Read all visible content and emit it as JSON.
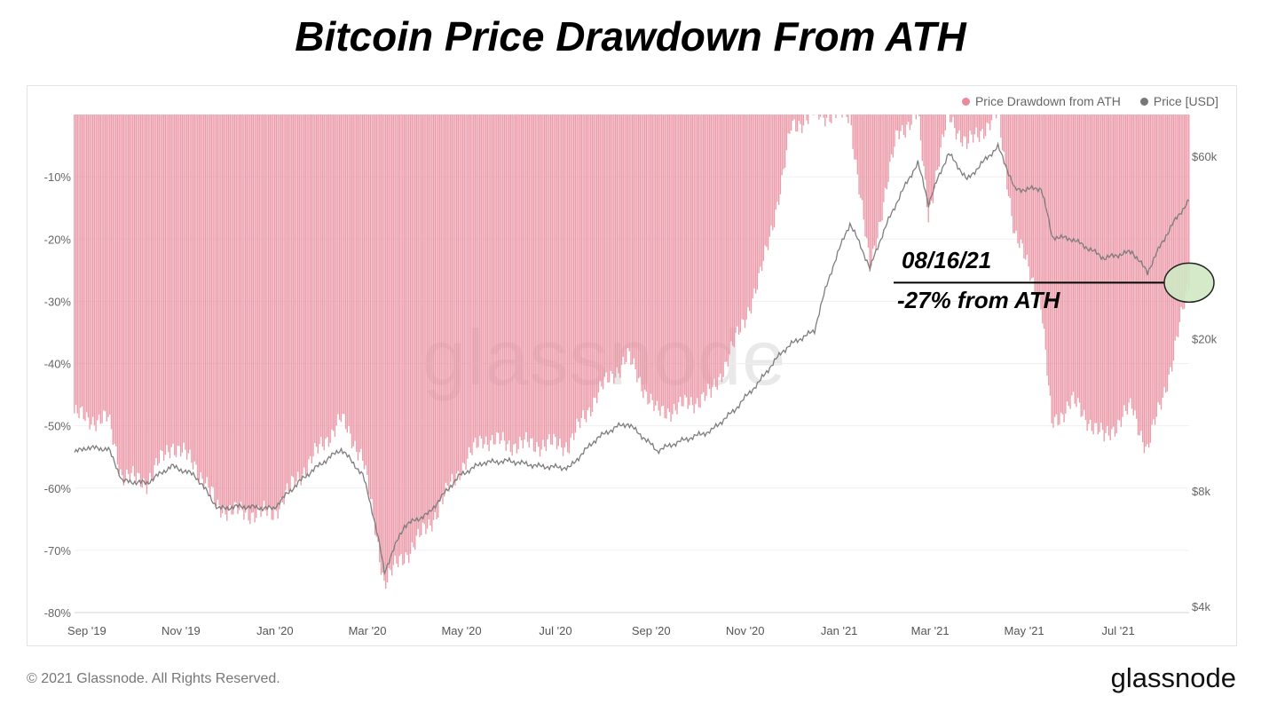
{
  "title": "Bitcoin Price Drawdown From ATH",
  "watermark": "glassnode",
  "legend": [
    {
      "label": "Price Drawdown from ATH",
      "color": "#e88a9a"
    },
    {
      "label": "Price [USD]",
      "color": "#777777"
    }
  ],
  "annotation": {
    "date": "08/16/21",
    "value": "-27% from ATH"
  },
  "footer": {
    "copyright": "© 2021 Glassnode. All Rights Reserved.",
    "logo": "glassnode"
  },
  "chart_data": {
    "type": "bar",
    "x_start": "2019-08-24",
    "x_end": "2021-08-16",
    "x_ticks": [
      "Sep '19",
      "Nov '19",
      "Jan '20",
      "Mar '20",
      "May '20",
      "Jul '20",
      "Sep '20",
      "Nov '20",
      "Jan '21",
      "Mar '21",
      "May '21",
      "Jul '21"
    ],
    "x_tick_dates": [
      "2019-09-01",
      "2019-11-01",
      "2020-01-01",
      "2020-03-01",
      "2020-05-01",
      "2020-07-01",
      "2020-09-01",
      "2020-11-01",
      "2021-01-01",
      "2021-03-01",
      "2021-05-01",
      "2021-07-01"
    ],
    "y_left": {
      "ticks": [
        "-10%",
        "-20%",
        "-30%",
        "-40%",
        "-50%",
        "-60%",
        "-70%",
        "-80%"
      ],
      "tick_values": [
        -10,
        -20,
        -30,
        -40,
        -50,
        -60,
        -70,
        -80
      ],
      "range": [
        -80,
        0
      ]
    },
    "y_right": {
      "ticks": [
        "$60k",
        "$20k",
        "$8k",
        "$4k"
      ],
      "tick_values": [
        60000,
        20000,
        8000,
        4000
      ],
      "scale": "log",
      "range": [
        4000,
        70000
      ]
    },
    "series": [
      {
        "name": "Price Drawdown from ATH",
        "kind": "bar",
        "color": "#e88a9a",
        "points": [
          [
            "2019-08-24",
            -48
          ],
          [
            "2019-09-01",
            -49
          ],
          [
            "2019-09-15",
            -49
          ],
          [
            "2019-09-24",
            -58
          ],
          [
            "2019-10-10",
            -59
          ],
          [
            "2019-10-26",
            -53
          ],
          [
            "2019-11-10",
            -56
          ],
          [
            "2019-11-25",
            -63
          ],
          [
            "2019-12-10",
            -64
          ],
          [
            "2019-12-31",
            -64
          ],
          [
            "2020-01-20",
            -57
          ],
          [
            "2020-02-13",
            -49
          ],
          [
            "2020-02-27",
            -55
          ],
          [
            "2020-03-12",
            -75
          ],
          [
            "2020-03-25",
            -71
          ],
          [
            "2020-04-10",
            -66
          ],
          [
            "2020-04-30",
            -57
          ],
          [
            "2020-05-15",
            -52
          ],
          [
            "2020-06-01",
            -53
          ],
          [
            "2020-06-20",
            -53
          ],
          [
            "2020-07-10",
            -53
          ],
          [
            "2020-07-28",
            -45
          ],
          [
            "2020-08-10",
            -41
          ],
          [
            "2020-08-17",
            -39
          ],
          [
            "2020-09-05",
            -48
          ],
          [
            "2020-09-20",
            -47
          ],
          [
            "2020-10-10",
            -45
          ],
          [
            "2020-10-25",
            -37
          ],
          [
            "2020-11-10",
            -27
          ],
          [
            "2020-11-25",
            -11
          ],
          [
            "2020-12-01",
            -2
          ],
          [
            "2020-12-16",
            0
          ],
          [
            "2021-01-08",
            0
          ],
          [
            "2021-01-21",
            -25
          ],
          [
            "2021-02-08",
            -3
          ],
          [
            "2021-02-21",
            0
          ],
          [
            "2021-02-28",
            -16
          ],
          [
            "2021-03-13",
            0
          ],
          [
            "2021-03-25",
            -5
          ],
          [
            "2021-04-14",
            0
          ],
          [
            "2021-04-25",
            -19
          ],
          [
            "2021-05-12",
            -30
          ],
          [
            "2021-05-19",
            -50
          ],
          [
            "2021-06-01",
            -46
          ],
          [
            "2021-06-22",
            -52
          ],
          [
            "2021-07-10",
            -47
          ],
          [
            "2021-07-20",
            -54
          ],
          [
            "2021-08-05",
            -40
          ],
          [
            "2021-08-16",
            -27
          ]
        ]
      },
      {
        "name": "Price [USD]",
        "kind": "line",
        "color": "#7d7d7d",
        "points": [
          [
            "2019-08-24",
            10100
          ],
          [
            "2019-09-01",
            10400
          ],
          [
            "2019-09-15",
            10300
          ],
          [
            "2019-09-24",
            8500
          ],
          [
            "2019-10-10",
            8400
          ],
          [
            "2019-10-26",
            9300
          ],
          [
            "2019-11-10",
            8800
          ],
          [
            "2019-11-25",
            7200
          ],
          [
            "2019-12-10",
            7300
          ],
          [
            "2019-12-31",
            7200
          ],
          [
            "2020-01-20",
            8700
          ],
          [
            "2020-02-13",
            10300
          ],
          [
            "2020-02-27",
            8800
          ],
          [
            "2020-03-12",
            4900
          ],
          [
            "2020-03-25",
            6500
          ],
          [
            "2020-04-10",
            7000
          ],
          [
            "2020-04-30",
            8800
          ],
          [
            "2020-05-15",
            9500
          ],
          [
            "2020-06-01",
            9600
          ],
          [
            "2020-06-20",
            9300
          ],
          [
            "2020-07-10",
            9200
          ],
          [
            "2020-07-28",
            11000
          ],
          [
            "2020-08-10",
            11800
          ],
          [
            "2020-08-17",
            12000
          ],
          [
            "2020-09-05",
            10200
          ],
          [
            "2020-09-20",
            10800
          ],
          [
            "2020-10-10",
            11500
          ],
          [
            "2020-10-25",
            13000
          ],
          [
            "2020-11-10",
            15400
          ],
          [
            "2020-11-25",
            18500
          ],
          [
            "2020-12-01",
            19400
          ],
          [
            "2020-12-16",
            21000
          ],
          [
            "2021-01-08",
            40000
          ],
          [
            "2021-01-21",
            30500
          ],
          [
            "2021-02-08",
            46000
          ],
          [
            "2021-02-21",
            57500
          ],
          [
            "2021-02-28",
            45000
          ],
          [
            "2021-03-13",
            61000
          ],
          [
            "2021-03-25",
            52000
          ],
          [
            "2021-04-14",
            63500
          ],
          [
            "2021-04-25",
            49000
          ],
          [
            "2021-05-12",
            49500
          ],
          [
            "2021-05-19",
            37000
          ],
          [
            "2021-06-01",
            36500
          ],
          [
            "2021-06-22",
            32500
          ],
          [
            "2021-07-10",
            33800
          ],
          [
            "2021-07-20",
            29800
          ],
          [
            "2021-08-05",
            39700
          ],
          [
            "2021-08-16",
            46000
          ]
        ]
      }
    ]
  }
}
